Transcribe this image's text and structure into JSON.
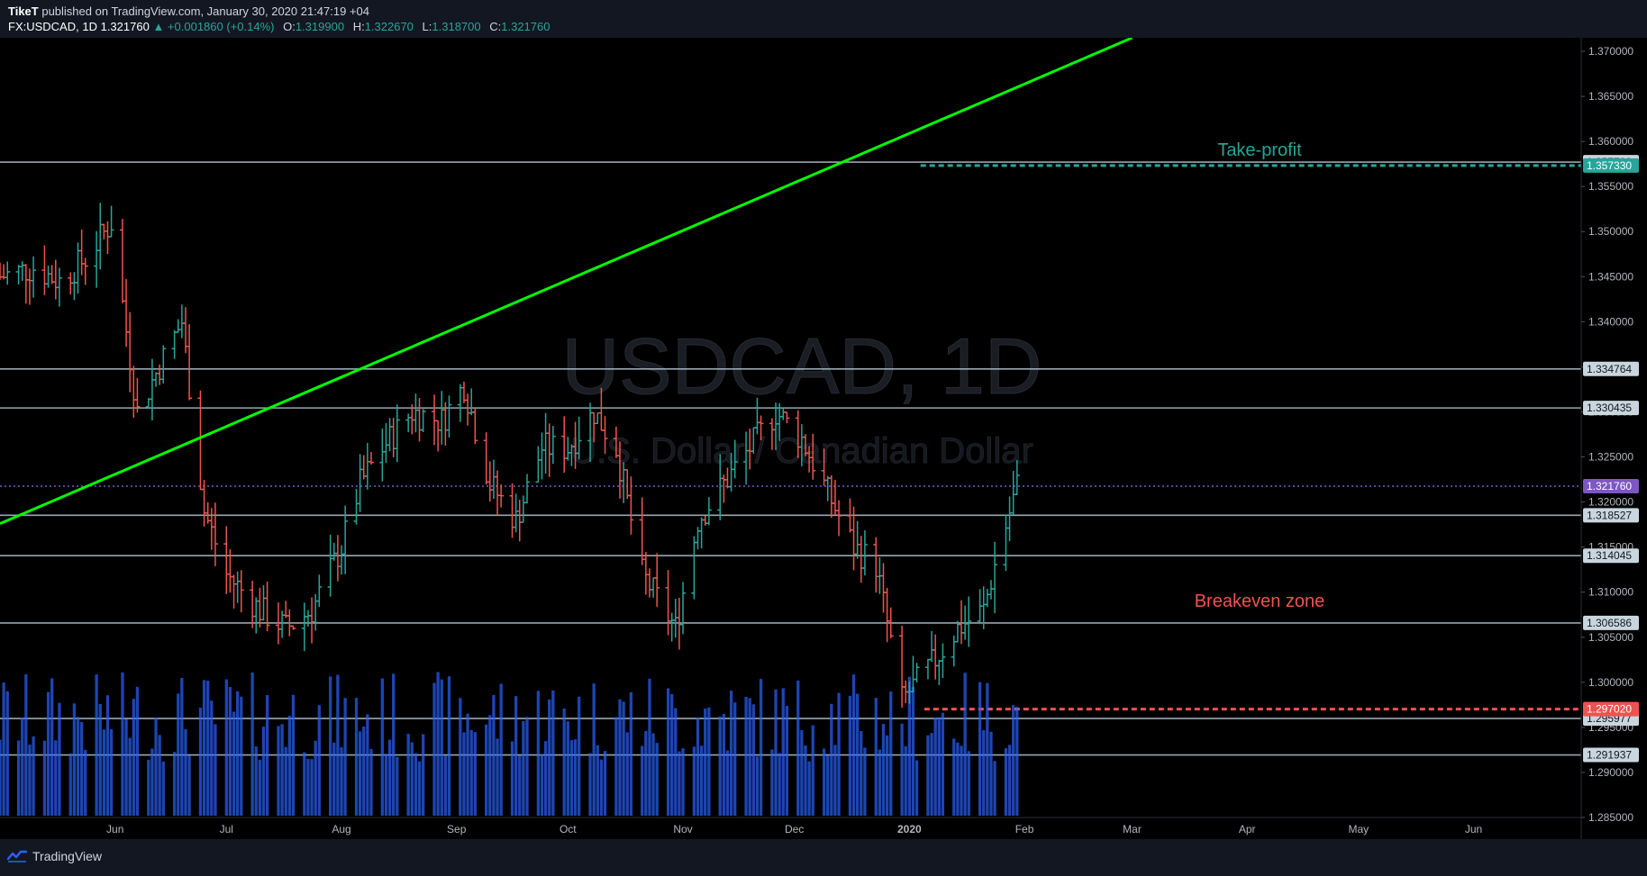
{
  "header": {
    "author": "TikeT",
    "published": "published on TradingView.com, January 30, 2020 21:47:19 +04",
    "symbol": "FX:USDCAD, 1D",
    "last": "1.321760",
    "change": "▲ +0.001860 (+0.14%)",
    "o_label": "O:",
    "o_value": "1.319900",
    "h_label": "H:",
    "h_value": "1.322670",
    "l_label": "L:",
    "l_value": "1.318700",
    "c_label": "C:",
    "c_value": "1.321760"
  },
  "footer": {
    "brand": "TradingView",
    "logo_icon": "tradingview-logo-icon"
  },
  "colors": {
    "background": "#000000",
    "up": "#26a69a",
    "down": "#ef5350",
    "volume": "#2962ff",
    "trendline": "#00ff00",
    "levels": "#b2c4cf",
    "take_profit": "#26a69a",
    "breakeven": "#ef5350",
    "current": "#7e57c2"
  },
  "chart_data": {
    "type": "candlestick",
    "watermark": {
      "title": "USDCAD, 1D",
      "subtitle": "U.S. Dollar / Canadian Dollar"
    },
    "x_axis": {
      "labels": [
        "Jun",
        "Jul",
        "Aug",
        "Sep",
        "Oct",
        "Nov",
        "Dec",
        "2020",
        "Feb",
        "Mar",
        "Apr",
        "May",
        "Jun"
      ],
      "range": [
        "2019-05-01",
        "2020-06-30"
      ]
    },
    "y_axis": {
      "ticks": [
        "1.370000",
        "1.365000",
        "1.360000",
        "1.355000",
        "1.350000",
        "1.345000",
        "1.340000",
        "1.335000",
        "1.330000",
        "1.325000",
        "1.320000",
        "1.315000",
        "1.310000",
        "1.305000",
        "1.300000",
        "1.295000",
        "1.290000",
        "1.285000"
      ],
      "range": [
        1.285,
        1.3715
      ]
    },
    "levels": [
      {
        "price": 1.357709,
        "label": "1.357709"
      },
      {
        "price": 1.334764,
        "label": "1.334764"
      },
      {
        "price": 1.330435,
        "label": "1.330435"
      },
      {
        "price": 1.318527,
        "label": "1.318527"
      },
      {
        "price": 1.314045,
        "label": "1.314045"
      },
      {
        "price": 1.306586,
        "label": "1.306586"
      },
      {
        "price": 1.295977,
        "label": "1.295977"
      },
      {
        "price": 1.291937,
        "label": "1.291937"
      }
    ],
    "take_profit": {
      "price": 1.35733,
      "label": "1.357330",
      "text": "Take-profit"
    },
    "breakeven": {
      "price": 1.29702,
      "label": "1.297020",
      "text": "Breakeven zone"
    },
    "current_price": {
      "price": 1.32176,
      "label": "1.321760"
    },
    "trendline": {
      "from": [
        "2019-05-01",
        1.3176
      ],
      "to": [
        "2020-03-01",
        1.3715
      ]
    },
    "price_path": [
      [
        "2019-05-01",
        1.345
      ],
      [
        "2019-05-10",
        1.346
      ],
      [
        "2019-05-17",
        1.3445
      ],
      [
        "2019-05-24",
        1.347
      ],
      [
        "2019-05-31",
        1.351
      ],
      [
        "2019-06-07",
        1.33
      ],
      [
        "2019-06-14",
        1.336
      ],
      [
        "2019-06-19",
        1.34
      ],
      [
        "2019-06-25",
        1.319
      ],
      [
        "2019-07-01",
        1.312
      ],
      [
        "2019-07-10",
        1.308
      ],
      [
        "2019-07-17",
        1.306
      ],
      [
        "2019-07-24",
        1.308
      ],
      [
        "2019-08-01",
        1.315
      ],
      [
        "2019-08-06",
        1.322
      ],
      [
        "2019-08-12",
        1.326
      ],
      [
        "2019-08-20",
        1.33
      ],
      [
        "2019-08-28",
        1.329
      ],
      [
        "2019-09-03",
        1.333
      ],
      [
        "2019-09-10",
        1.322
      ],
      [
        "2019-09-17",
        1.318
      ],
      [
        "2019-09-24",
        1.326
      ],
      [
        "2019-10-01",
        1.326
      ],
      [
        "2019-10-08",
        1.33
      ],
      [
        "2019-10-14",
        1.326
      ],
      [
        "2019-10-21",
        1.312
      ],
      [
        "2019-10-30",
        1.306
      ],
      [
        "2019-11-05",
        1.318
      ],
      [
        "2019-11-12",
        1.322
      ],
      [
        "2019-11-19",
        1.326
      ],
      [
        "2019-11-26",
        1.33
      ],
      [
        "2019-12-03",
        1.327
      ],
      [
        "2019-12-10",
        1.321
      ],
      [
        "2019-12-17",
        1.315
      ],
      [
        "2019-12-23",
        1.313
      ],
      [
        "2019-12-30",
        1.298
      ],
      [
        "2020-01-07",
        1.302
      ],
      [
        "2020-01-14",
        1.306
      ],
      [
        "2020-01-21",
        1.308
      ],
      [
        "2020-01-24",
        1.313
      ],
      [
        "2020-01-30",
        1.3218
      ]
    ]
  }
}
